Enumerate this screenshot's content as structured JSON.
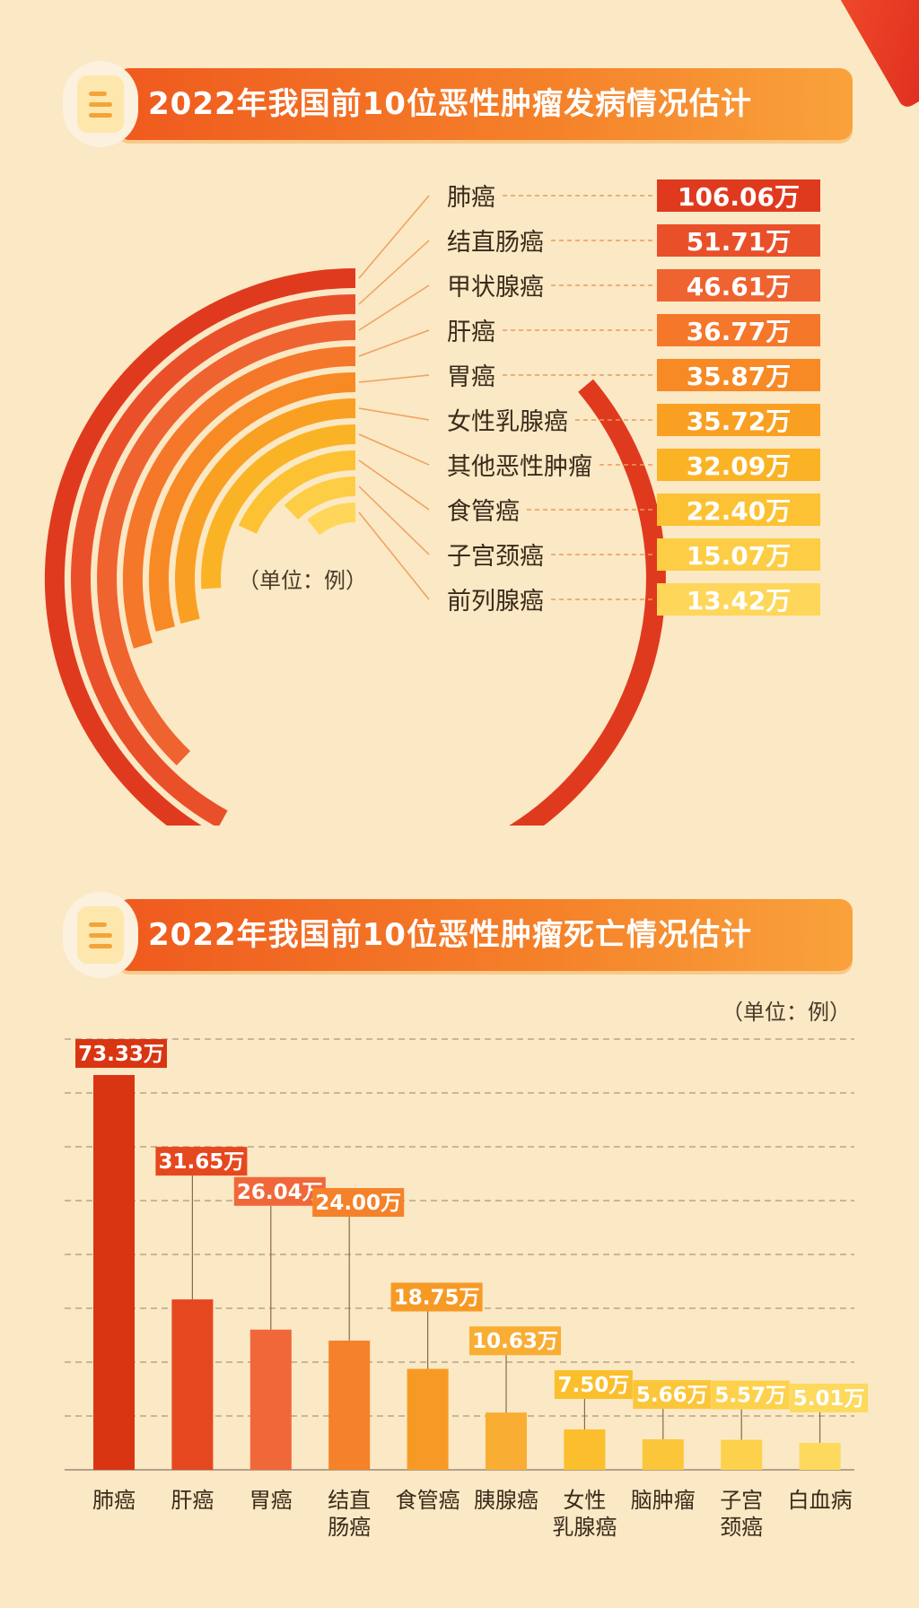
{
  "incidence": {
    "title": "2022年我国前10位恶性肿瘤发病情况估计",
    "unit_note": "（单位：例）",
    "chart_data": {
      "type": "bar",
      "title": "2022年我国前10位恶性肿瘤发病情况估计",
      "categories": [
        "肺癌",
        "结直肠癌",
        "甲状腺癌",
        "肝癌",
        "胃癌",
        "女性乳腺癌",
        "其他恶性肿瘤",
        "食管癌",
        "子宫颈癌",
        "前列腺癌"
      ],
      "values": [
        106.06,
        51.71,
        46.61,
        36.77,
        35.87,
        35.72,
        32.09,
        22.4,
        15.07,
        13.42
      ],
      "value_labels": [
        "106.06万",
        "51.71万",
        "46.61万",
        "36.77万",
        "35.87万",
        "35.72万",
        "32.09万",
        "22.40万",
        "15.07万",
        "13.42万"
      ],
      "colors": [
        "#e03a1e",
        "#e9502a",
        "#ef6330",
        "#f5772a",
        "#f78a25",
        "#f9a023",
        "#fbb326",
        "#fcc233",
        "#fdcd45",
        "#fed65a"
      ],
      "style": "radial-arc"
    }
  },
  "mortality": {
    "title": "2022年我国前10位恶性肿瘤死亡情况估计",
    "unit_note": "（单位：例）",
    "chart_data": {
      "type": "bar",
      "title": "2022年我国前10位恶性肿瘤死亡情况估计",
      "categories": [
        "肺癌",
        "肝癌",
        "胃癌",
        "结直肠癌",
        "食管癌",
        "胰腺癌",
        "女性乳腺癌",
        "脑肿瘤",
        "子宫颈癌",
        "白血病"
      ],
      "category_lines": [
        [
          "肺癌"
        ],
        [
          "肝癌"
        ],
        [
          "胃癌"
        ],
        [
          "结直",
          "肠癌"
        ],
        [
          "食管癌"
        ],
        [
          "胰腺癌"
        ],
        [
          "女性",
          "乳腺癌"
        ],
        [
          "脑肿瘤"
        ],
        [
          "子宫",
          "颈癌"
        ],
        [
          "白血病"
        ]
      ],
      "values": [
        73.33,
        31.65,
        26.04,
        24.0,
        18.75,
        10.63,
        7.5,
        5.66,
        5.57,
        5.01
      ],
      "value_labels": [
        "73.33万",
        "31.65万",
        "26.04万",
        "24.00万",
        "18.75万",
        "10.63万",
        "7.50万",
        "5.66万",
        "5.57万",
        "5.01万"
      ],
      "colors": [
        "#d93512",
        "#e5481f",
        "#f0683a",
        "#f5822a",
        "#f79a25",
        "#f9ad33",
        "#fbbf2d",
        "#fcc63a",
        "#fdd14c",
        "#fdd95e"
      ],
      "ylim": [
        0,
        80
      ],
      "grid": true
    }
  }
}
